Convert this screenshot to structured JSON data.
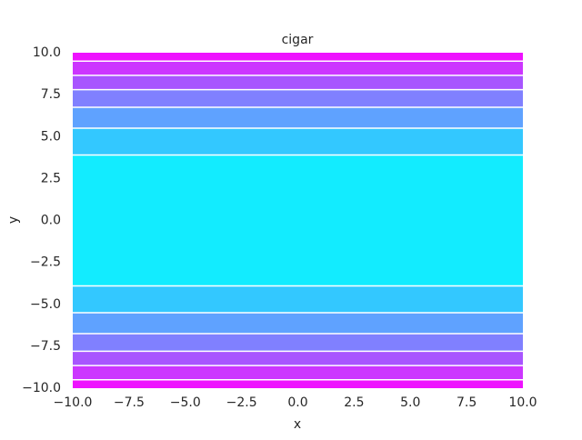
{
  "chart_data": {
    "type": "contour",
    "title": "cigar",
    "x_label": "x",
    "y_label": "y",
    "levels": [
      -10,
      -9.5,
      -8.65,
      -7.8,
      -6.75,
      -5.5,
      -3.9,
      3.9,
      5.5,
      6.75,
      7.8,
      8.65,
      9.5,
      10
    ],
    "colors": [
      "#ee12ff",
      "#cc36ff",
      "#a855ff",
      "#8080ff",
      "#5fa2ff",
      "#33c8ff",
      "#12ecff",
      "#33c8ff",
      "#5fa2ff",
      "#8080ff",
      "#a855ff",
      "#cc36ff",
      "#ee12ff"
    ],
    "line_color": "#ffffff",
    "xlim": [
      -10,
      10
    ],
    "ylim": [
      -10,
      10
    ],
    "xticks": [
      {
        "value": -10,
        "label": "−10.0"
      },
      {
        "value": -7.5,
        "label": "−7.5"
      },
      {
        "value": -5,
        "label": "−5.0"
      },
      {
        "value": -2.5,
        "label": "−2.5"
      },
      {
        "value": 0,
        "label": "0.0"
      },
      {
        "value": 2.5,
        "label": "2.5"
      },
      {
        "value": 5,
        "label": "5.0"
      },
      {
        "value": 7.5,
        "label": "7.5"
      },
      {
        "value": 10,
        "label": "10.0"
      }
    ],
    "yticks": [
      {
        "value": -10,
        "label": "−10.0"
      },
      {
        "value": -7.5,
        "label": "−7.5"
      },
      {
        "value": -5,
        "label": "−5.0"
      },
      {
        "value": -2.5,
        "label": "−2.5"
      },
      {
        "value": 0,
        "label": "0.0"
      },
      {
        "value": 2.5,
        "label": "2.5"
      },
      {
        "value": 5,
        "label": "5.0"
      },
      {
        "value": 7.5,
        "label": "7.5"
      },
      {
        "value": 10,
        "label": "10.0"
      }
    ]
  }
}
